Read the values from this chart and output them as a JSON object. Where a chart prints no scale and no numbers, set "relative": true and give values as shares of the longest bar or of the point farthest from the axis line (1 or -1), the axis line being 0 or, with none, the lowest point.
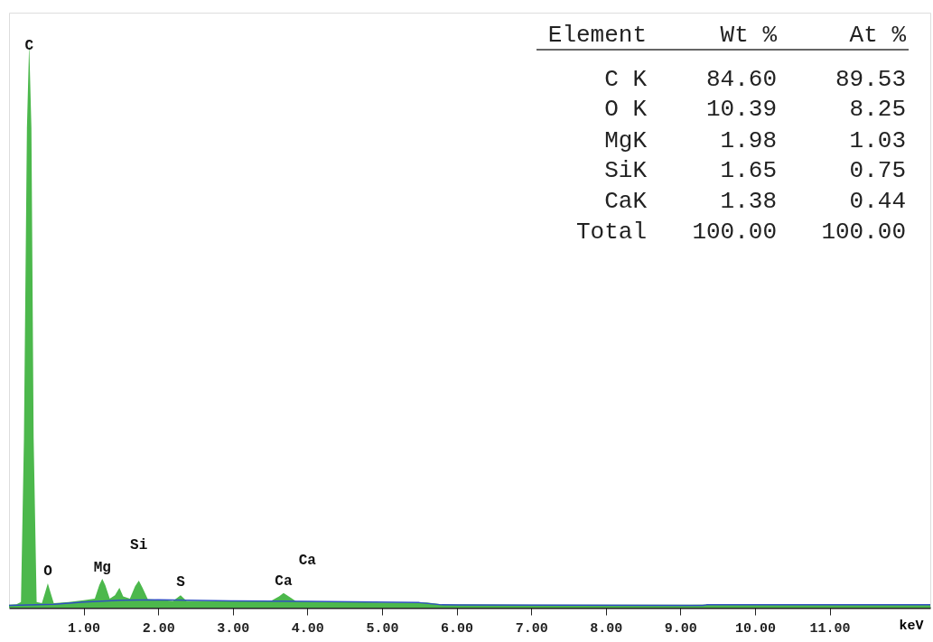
{
  "chart_data": {
    "type": "area",
    "relative": true,
    "xlabel": "keV",
    "xlim": [
      0,
      12.35
    ],
    "xticks": [
      {
        "value": 1,
        "label": "1.00"
      },
      {
        "value": 2,
        "label": "2.00"
      },
      {
        "value": 3,
        "label": "3.00"
      },
      {
        "value": 4,
        "label": "4.00"
      },
      {
        "value": 5,
        "label": "5.00"
      },
      {
        "value": 6,
        "label": "6.00"
      },
      {
        "value": 7,
        "label": "7.00"
      },
      {
        "value": 8,
        "label": "8.00"
      },
      {
        "value": 9,
        "label": "9.00"
      },
      {
        "value": 10,
        "label": "10.00"
      },
      {
        "value": 11,
        "label": "11.00"
      }
    ],
    "grid": false,
    "series": [
      {
        "color": "#4cb84c",
        "x": [
          0.0,
          0.1,
          0.16,
          0.2,
          0.24,
          0.27,
          0.3,
          0.33,
          0.37,
          0.44,
          0.48,
          0.52,
          0.56,
          0.6,
          0.8,
          1.0,
          1.15,
          1.21,
          1.25,
          1.29,
          1.35,
          1.42,
          1.48,
          1.53,
          1.62,
          1.69,
          1.74,
          1.79,
          1.86,
          2.0,
          2.2,
          2.3,
          2.38,
          2.6,
          3.0,
          3.5,
          3.62,
          3.68,
          3.75,
          3.85,
          4.0,
          4.5,
          5.0,
          5.6,
          5.8,
          7.0,
          9.0,
          10.0,
          11.0,
          12.35
        ],
        "values": [
          0.005,
          0.006,
          0.01,
          0.3,
          0.85,
          1.0,
          0.85,
          0.3,
          0.01,
          0.008,
          0.025,
          0.043,
          0.025,
          0.008,
          0.01,
          0.013,
          0.016,
          0.04,
          0.051,
          0.04,
          0.016,
          0.022,
          0.035,
          0.02,
          0.016,
          0.038,
          0.048,
          0.035,
          0.015,
          0.014,
          0.012,
          0.022,
          0.012,
          0.012,
          0.011,
          0.011,
          0.02,
          0.026,
          0.02,
          0.011,
          0.011,
          0.01,
          0.009,
          0.009,
          0.006,
          0.005,
          0.005,
          0.006,
          0.006,
          0.006
        ]
      },
      {
        "type": "line",
        "color": "#3050c0",
        "x": [
          0.0,
          0.6,
          1.0,
          1.5,
          2.0,
          3.0,
          4.0,
          5.5,
          5.8,
          9.3,
          9.35,
          12.35
        ],
        "values": [
          0.004,
          0.006,
          0.01,
          0.013,
          0.014,
          0.012,
          0.011,
          0.009,
          0.005,
          0.004,
          0.005,
          0.005
        ]
      }
    ],
    "annotations": [
      {
        "text": "C",
        "x": 0.27,
        "y": 1.0
      },
      {
        "text": "O",
        "x": 0.52,
        "y": 0.043
      },
      {
        "text": "Mg",
        "x": 1.25,
        "y": 0.051
      },
      {
        "text": "Si",
        "x": 1.74,
        "y": 0.048
      },
      {
        "text": "S",
        "x": 2.3,
        "y": 0.022
      },
      {
        "text": "Ca",
        "x": 3.68,
        "y": 0.026
      },
      {
        "text": "Ca",
        "x": 4.0,
        "y": 0.011
      },
      "Element",
      "Wt %",
      "At %",
      "C K",
      "84.60",
      "89.53",
      "O K",
      "10.39",
      "8.25",
      "MgK",
      "1.98",
      "1.03",
      "SiK",
      "1.65",
      "0.75",
      "CaK",
      "1.38",
      "0.44",
      "Total",
      "100.00",
      "100.00"
    ]
  }
}
